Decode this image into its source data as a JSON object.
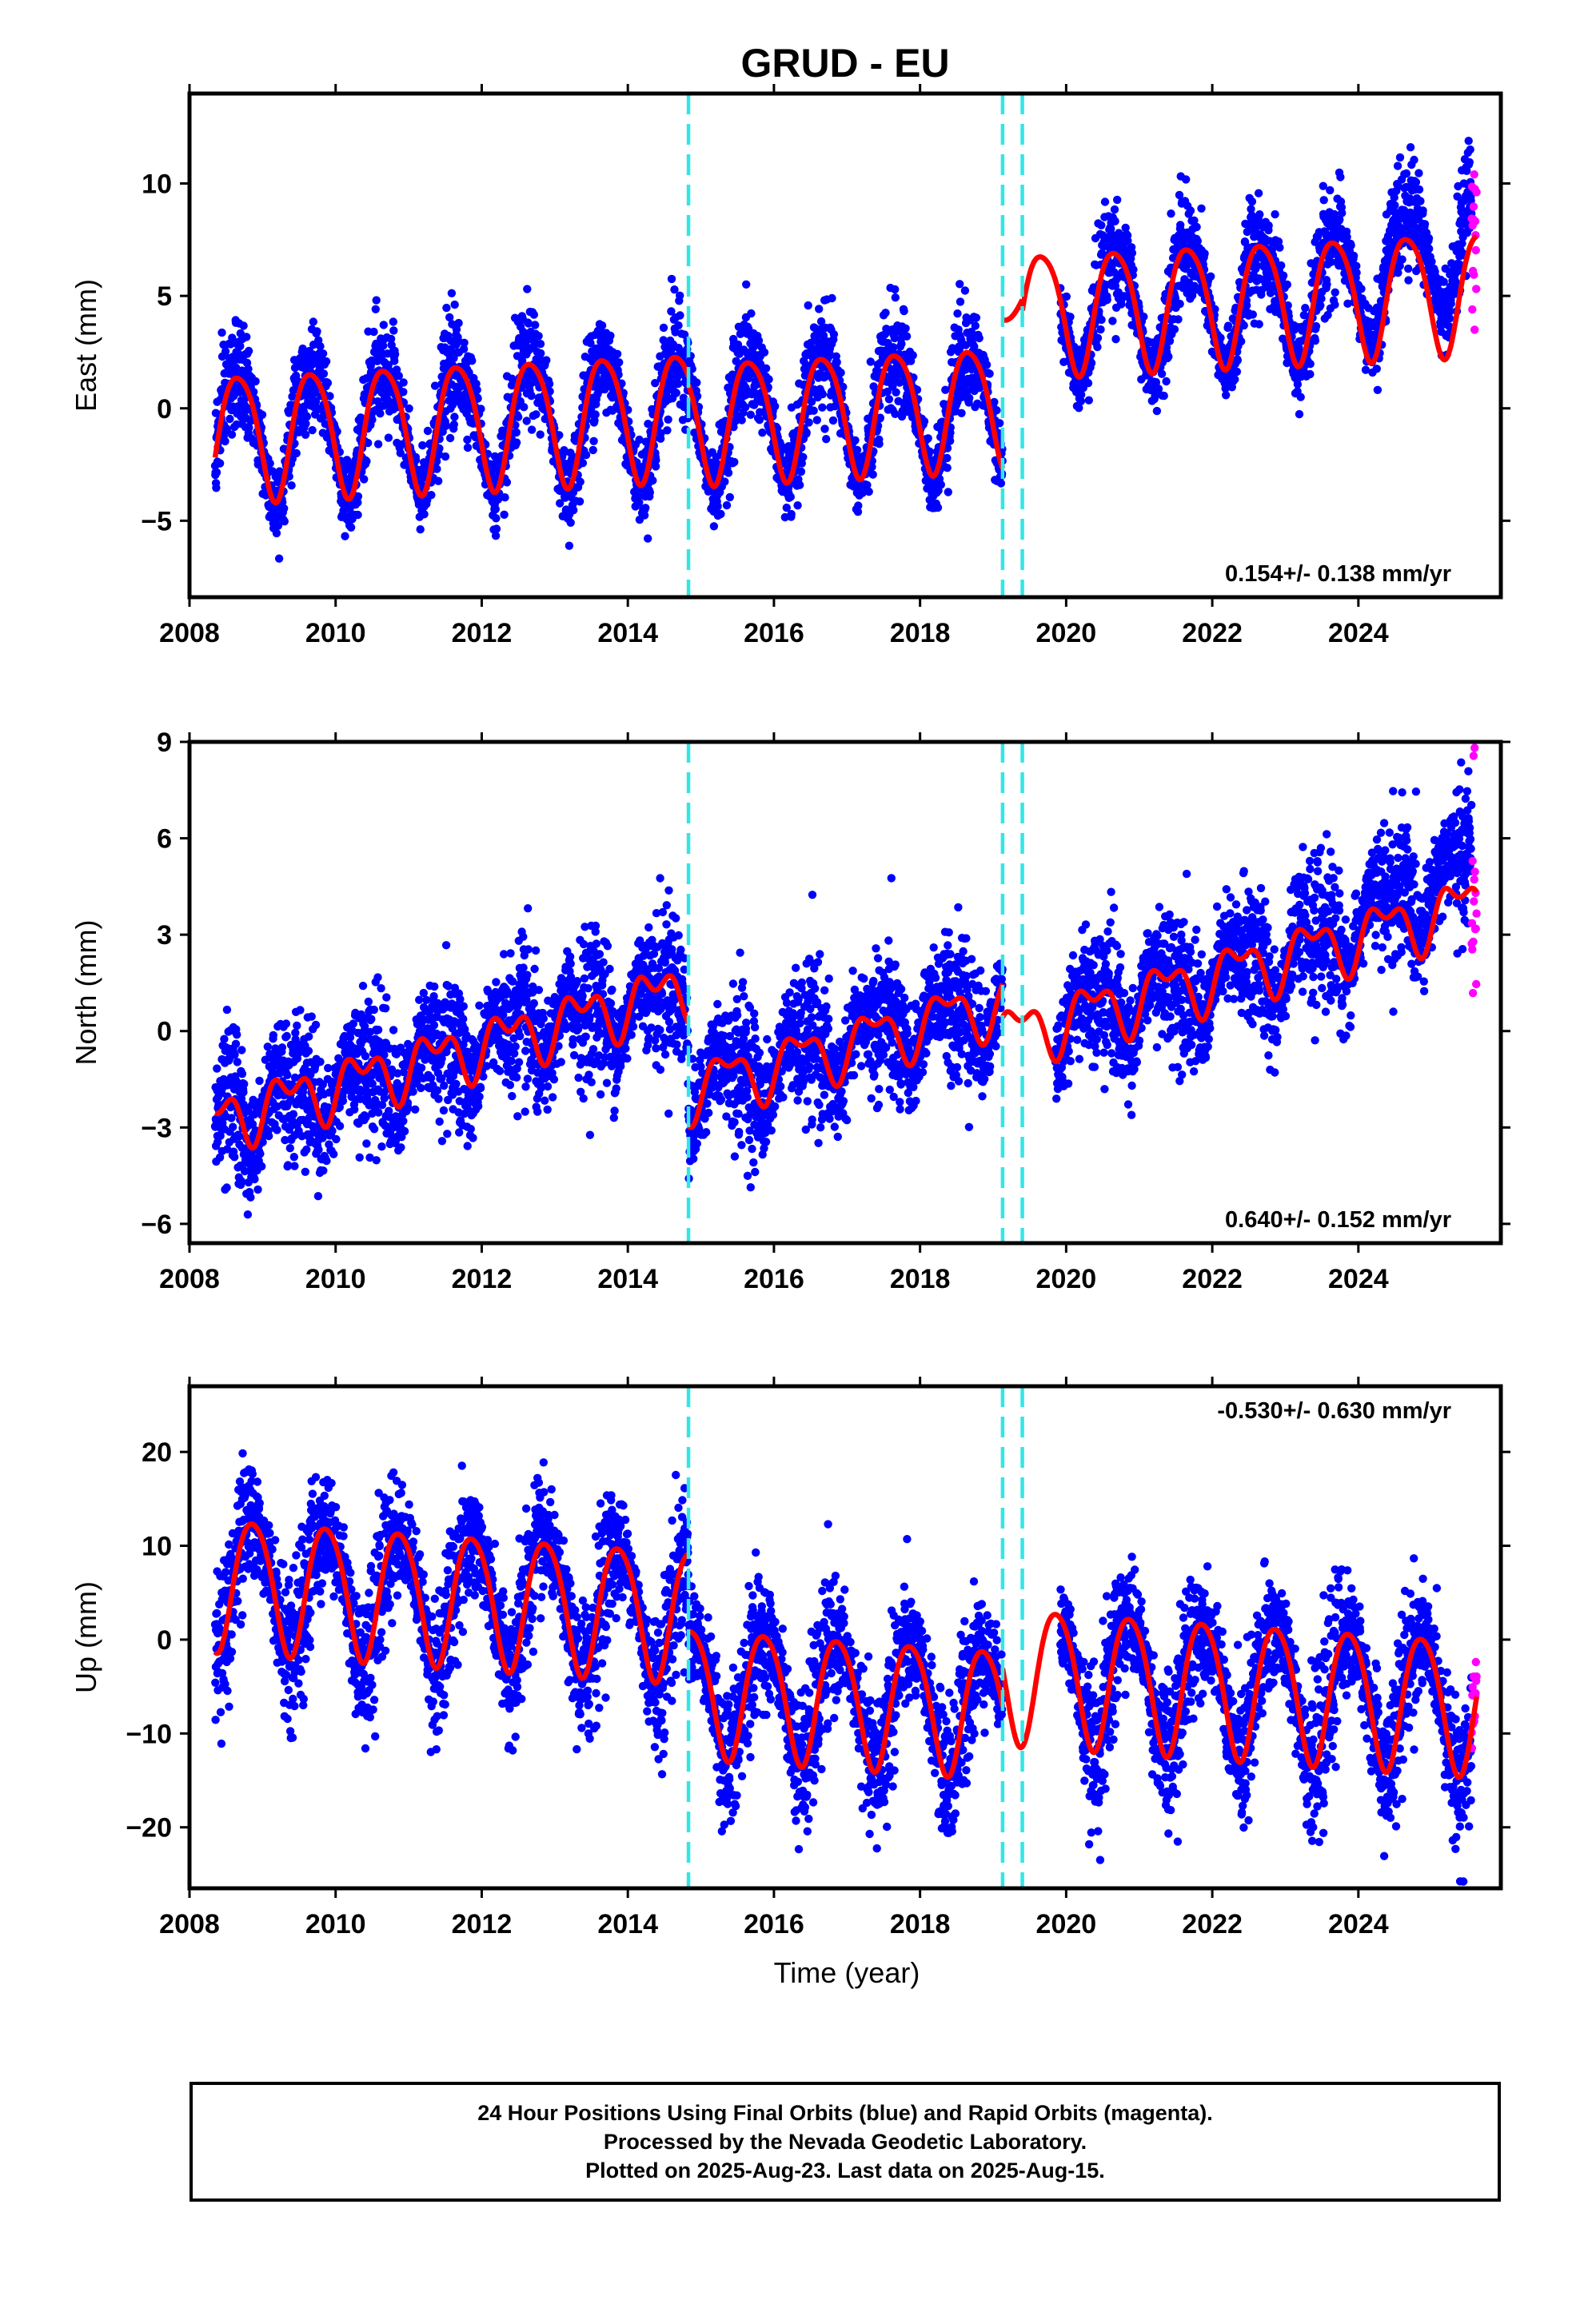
{
  "title": "GRUD - EU",
  "colors": {
    "final_orbits": "#0000ff",
    "rapid_orbits": "#ff00ff",
    "model_fit": "#ff0000",
    "equipment_change": "#33e6e6"
  },
  "footer": {
    "line1": "24 Hour Positions Using Final Orbits (blue) and Rapid Orbits (magenta).",
    "line2": "Processed by the Nevada Geodetic Laboratory.",
    "line3": "Plotted on 2025-Aug-23. Last data on 2025-Aug-15."
  },
  "chart_data": [
    {
      "type": "scatter",
      "component": "east",
      "ylabel": "East (mm)",
      "xlabel": "",
      "xlim": [
        2008.0,
        2025.95
      ],
      "ylim": [
        -8.4,
        14.0
      ],
      "xticks": [
        2008,
        2010,
        2012,
        2014,
        2016,
        2018,
        2020,
        2022,
        2024
      ],
      "yticks": [
        -5,
        0,
        5,
        10
      ],
      "ytick_labels": [
        "−5",
        "0",
        "5",
        "10"
      ],
      "rate_text": "0.154+/- 0.138 mm/yr",
      "rate_position": "bottom-right",
      "steps": [
        2014.83,
        2019.13,
        2019.4
      ],
      "data_start": 2008.35,
      "data_end": 2025.62,
      "fit_segments": [
        {
          "t0": 2008.35,
          "t1": 2014.83,
          "offset": -1.2,
          "rate": 0.154,
          "amp": 2.8,
          "phase": 0.42,
          "amp2": 0.4
        },
        {
          "t0": 2014.83,
          "t1": 2019.13,
          "offset": -1.5,
          "rate": 0.154,
          "amp": 2.7,
          "phase": 0.42,
          "amp2": 0.4
        },
        {
          "t0": 2019.13,
          "t1": 2019.4,
          "offset": 3.2,
          "rate": 0.154,
          "amp": 1.0,
          "phase": 0.42,
          "amp2": 0
        },
        {
          "t0": 2019.4,
          "t1": 2025.62,
          "offset": 2.6,
          "rate": 0.154,
          "amp": 2.7,
          "phase": 0.42,
          "amp2": 0.4
        }
      ],
      "series": [
        {
          "name": "Final Orbits",
          "color": "#0000ff",
          "noise": 1.3,
          "t0": 2008.35,
          "t1": 2025.55,
          "gaps": [
            [
              2019.13,
              2019.92
            ]
          ],
          "trend_extra": [
            [
              2023.5,
              2025.55,
              2.5
            ]
          ]
        },
        {
          "name": "Rapid Orbits",
          "color": "#ff00ff",
          "noise": 1.8,
          "t0": 2025.55,
          "t1": 2025.62,
          "gaps": []
        }
      ]
    },
    {
      "type": "scatter",
      "component": "north",
      "ylabel": "North (mm)",
      "xlabel": "",
      "xlim": [
        2008.0,
        2025.95
      ],
      "ylim": [
        -6.6,
        9.0
      ],
      "xticks": [
        2008,
        2010,
        2012,
        2014,
        2016,
        2018,
        2020,
        2022,
        2024
      ],
      "yticks": [
        -6,
        -3,
        0,
        3,
        6,
        9
      ],
      "ytick_labels": [
        "−6",
        "−3",
        "0",
        "3",
        "6",
        "9"
      ],
      "rate_text": "0.640+/- 0.152 mm/yr",
      "rate_position": "bottom-right",
      "steps": [
        2014.83,
        2019.13,
        2019.4
      ],
      "data_start": 2008.35,
      "data_end": 2025.62,
      "fit_segments": [
        {
          "t0": 2008.35,
          "t1": 2014.83,
          "offset": -3.0,
          "rate": 0.64,
          "amp": 0.7,
          "phase": 0.1,
          "amp2": 0.5
        },
        {
          "t0": 2014.83,
          "t1": 2019.13,
          "offset": -6.2,
          "rate": 0.64,
          "amp": 0.8,
          "phase": 0.1,
          "amp2": 0.4
        },
        {
          "t0": 2019.13,
          "t1": 2025.62,
          "offset": -7.3,
          "rate": 0.64,
          "amp": 0.8,
          "phase": 0.1,
          "amp2": 0.45
        }
      ],
      "series": [
        {
          "name": "Final Orbits",
          "color": "#0000ff",
          "noise": 1.25,
          "t0": 2008.35,
          "t1": 2025.55,
          "gaps": [
            [
              2019.13,
              2019.85
            ]
          ],
          "trend_extra": [
            [
              2023.4,
              2025.55,
              1.3
            ]
          ]
        },
        {
          "name": "Rapid Orbits",
          "color": "#ff00ff",
          "noise": 1.6,
          "t0": 2025.55,
          "t1": 2025.62,
          "gaps": []
        }
      ]
    },
    {
      "type": "scatter",
      "component": "up",
      "ylabel": "Up (mm)",
      "xlabel": "Time (year)",
      "xlim": [
        2008.0,
        2025.95
      ],
      "ylim": [
        -26.5,
        27.0
      ],
      "xticks": [
        2008,
        2010,
        2012,
        2014,
        2016,
        2018,
        2020,
        2022,
        2024
      ],
      "yticks": [
        -20,
        -10,
        0,
        10,
        20
      ],
      "ytick_labels": [
        "−20",
        "−10",
        "0",
        "10",
        "20"
      ],
      "rate_text": "-0.530+/- 0.630 mm/yr",
      "rate_position": "top-right",
      "steps": [
        2014.83,
        2019.13,
        2019.4
      ],
      "data_start": 2008.35,
      "data_end": 2025.62,
      "fit_segments": [
        {
          "t0": 2008.35,
          "t1": 2014.83,
          "offset": 6.5,
          "rate": -0.53,
          "amp": 7.0,
          "phase": 0.62,
          "amp2": 0.8
        },
        {
          "t0": 2014.83,
          "t1": 2019.13,
          "offset": -1.6,
          "rate": -0.53,
          "amp": 6.8,
          "phase": 0.62,
          "amp2": 0.8
        },
        {
          "t0": 2019.13,
          "t1": 2025.62,
          "offset": 2.5,
          "rate": -0.53,
          "amp": 7.2,
          "phase": 0.62,
          "amp2": 0.8
        }
      ],
      "series": [
        {
          "name": "Final Orbits",
          "color": "#0000ff",
          "noise": 4.5,
          "t0": 2008.35,
          "t1": 2025.55,
          "gaps": [
            [
              2019.13,
              2019.92
            ]
          ],
          "trend_extra": []
        },
        {
          "name": "Rapid Orbits",
          "color": "#ff00ff",
          "noise": 3.2,
          "t0": 2025.55,
          "t1": 2025.62,
          "gaps": []
        }
      ]
    }
  ]
}
